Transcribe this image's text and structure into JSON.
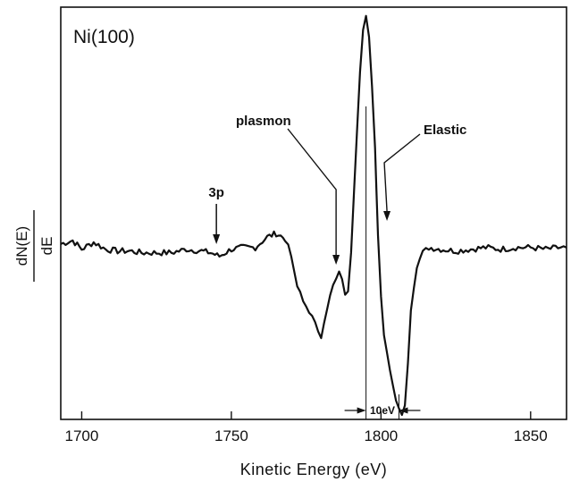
{
  "chart_data": {
    "type": "line",
    "title": "Ni(100)",
    "xlabel": "Kinetic Energy (eV)",
    "ylabel_numerator": "dN(E)",
    "ylabel_denominator": "dE",
    "xlim": [
      1693,
      1862
    ],
    "ylim": [
      -1.0,
      1.35
    ],
    "x_ticks": [
      1700,
      1750,
      1800,
      1850
    ],
    "x_tick_labels": [
      "1700",
      "1750",
      "1800",
      "1850"
    ],
    "grid": false,
    "legend": "none",
    "y_tick_labels_shown": false,
    "series": [
      {
        "x": [
          1693,
          1697,
          1700,
          1704,
          1708,
          1712,
          1716,
          1720,
          1725,
          1730,
          1735,
          1740,
          1743,
          1746,
          1750,
          1754,
          1758,
          1762,
          1765,
          1768,
          1770,
          1772,
          1774,
          1776,
          1778,
          1780,
          1781,
          1782,
          1784,
          1786,
          1787,
          1788,
          1789,
          1790,
          1791,
          1792,
          1793,
          1794,
          1795,
          1796,
          1797,
          1798,
          1798.5,
          1799,
          1800,
          1801,
          1802,
          1803,
          1804,
          1805,
          1806,
          1807,
          1808,
          1809,
          1810,
          1812,
          1814,
          1816,
          1820,
          1825,
          1830,
          1835,
          1840,
          1845,
          1850,
          1855,
          1860,
          1862
        ],
        "y": [
          0.0,
          0.02,
          -0.03,
          0.01,
          -0.03,
          -0.04,
          -0.04,
          -0.05,
          -0.05,
          -0.05,
          -0.03,
          -0.04,
          -0.05,
          -0.07,
          -0.03,
          -0.02,
          -0.02,
          0.04,
          0.06,
          0.03,
          -0.07,
          -0.24,
          -0.33,
          -0.38,
          -0.46,
          -0.52,
          -0.45,
          -0.36,
          -0.24,
          -0.17,
          -0.2,
          -0.28,
          -0.27,
          -0.05,
          0.3,
          0.65,
          0.98,
          1.22,
          1.3,
          1.18,
          0.9,
          0.55,
          0.3,
          0.05,
          -0.3,
          -0.52,
          -0.62,
          -0.72,
          -0.82,
          -0.88,
          -0.92,
          -0.96,
          -0.92,
          -0.68,
          -0.38,
          -0.12,
          -0.05,
          -0.02,
          -0.03,
          -0.04,
          -0.03,
          -0.02,
          -0.03,
          -0.02,
          -0.02,
          -0.03,
          -0.02,
          -0.02
        ]
      }
    ],
    "annotations": [
      {
        "text": "3p",
        "x": 1745
      },
      {
        "text": "plasmon",
        "x": 1785
      },
      {
        "text": "Elastic",
        "x": 1802
      },
      {
        "text": "10eV",
        "x_from": 1795,
        "x_to": 1806
      }
    ]
  }
}
